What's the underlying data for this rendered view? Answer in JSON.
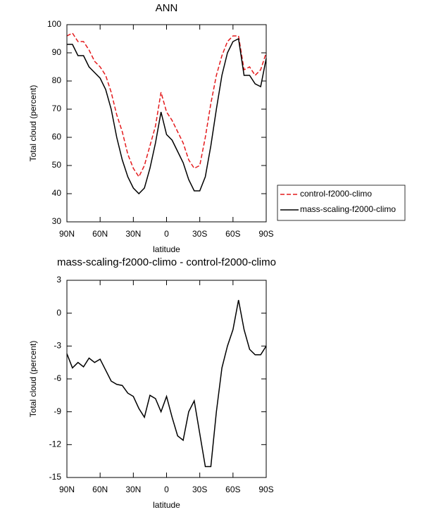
{
  "chart_data": [
    {
      "type": "line",
      "title": "ANN",
      "x_label": "latitude",
      "y_label": "Total cloud (percent)",
      "x": [
        90,
        85,
        80,
        75,
        70,
        65,
        60,
        55,
        50,
        45,
        40,
        35,
        30,
        25,
        20,
        15,
        10,
        5,
        0,
        -5,
        -10,
        -15,
        -20,
        -25,
        -30,
        -35,
        -40,
        -45,
        -50,
        -55,
        -60,
        -65,
        -70,
        -75,
        -80,
        -85,
        -90
      ],
      "series": [
        {
          "name": "control-f2000-climo",
          "color": "#e41a1c",
          "dash": "dashed",
          "values": [
            96,
            97,
            94,
            94,
            91,
            87,
            85,
            82,
            76,
            68,
            62,
            54,
            49,
            46,
            50,
            57,
            64,
            76,
            69,
            66,
            62,
            58,
            52,
            49,
            50,
            60,
            72,
            82,
            89,
            94,
            96,
            96,
            84,
            85,
            82,
            84,
            90
          ]
        },
        {
          "name": "mass-scaling-f2000-climo",
          "color": "#000000",
          "dash": "solid",
          "values": [
            93,
            93,
            89,
            89,
            85,
            83,
            81,
            77,
            70,
            60,
            52,
            46,
            42,
            40,
            42,
            49,
            58,
            69,
            61,
            59,
            55,
            51,
            45,
            41,
            41,
            46,
            57,
            70,
            82,
            90,
            94,
            95,
            82,
            82,
            79,
            78,
            88
          ]
        }
      ],
      "xlim": [
        90,
        -90
      ],
      "xticks": [
        {
          "value": 90,
          "label": "90N"
        },
        {
          "value": 60,
          "label": "60N"
        },
        {
          "value": 30,
          "label": "30N"
        },
        0,
        {
          "value": -30,
          "label": "30S"
        },
        {
          "value": -60,
          "label": "60S"
        },
        {
          "value": -90,
          "label": "90S"
        }
      ],
      "ylim": [
        30,
        100
      ],
      "yticks": [
        30,
        40,
        50,
        60,
        70,
        80,
        90,
        100
      ],
      "legend": "right"
    },
    {
      "type": "line",
      "title": "mass-scaling-f2000-climo - control-f2000-climo",
      "x_label": "latitude",
      "y_label": "Total cloud (percent)",
      "x": [
        90,
        85,
        80,
        75,
        70,
        65,
        60,
        55,
        50,
        45,
        40,
        35,
        30,
        25,
        20,
        15,
        10,
        5,
        0,
        -5,
        -10,
        -15,
        -20,
        -25,
        -30,
        -35,
        -40,
        -45,
        -50,
        -55,
        -60,
        -65,
        -70,
        -75,
        -80,
        -85,
        -90
      ],
      "values": [
        -3.7,
        -5,
        -4.5,
        -4.9,
        -4.1,
        -4.5,
        -4.2,
        -5.2,
        -6.2,
        -6.5,
        -6.6,
        -7.3,
        -7.6,
        -8.7,
        -9.5,
        -7.5,
        -7.8,
        -9,
        -7.6,
        -9.5,
        -11.2,
        -11.6,
        -9,
        -8,
        -11,
        -14,
        -14,
        -9,
        -5,
        -3,
        -1.5,
        1.2,
        -1.5,
        -3.3,
        -3.8,
        -3.8,
        -3
      ],
      "color": "#000000",
      "xlim": [
        90,
        -90
      ],
      "xticks": [
        {
          "value": 90,
          "label": "90N"
        },
        {
          "value": 60,
          "label": "60N"
        },
        {
          "value": 30,
          "label": "30N"
        },
        0,
        {
          "value": -30,
          "label": "30S"
        },
        {
          "value": -60,
          "label": "60S"
        },
        {
          "value": -90,
          "label": "90S"
        }
      ],
      "ylim": [
        -15,
        3
      ],
      "yticks": [
        -15,
        -12,
        -9,
        -6,
        -3,
        0,
        3
      ]
    }
  ]
}
